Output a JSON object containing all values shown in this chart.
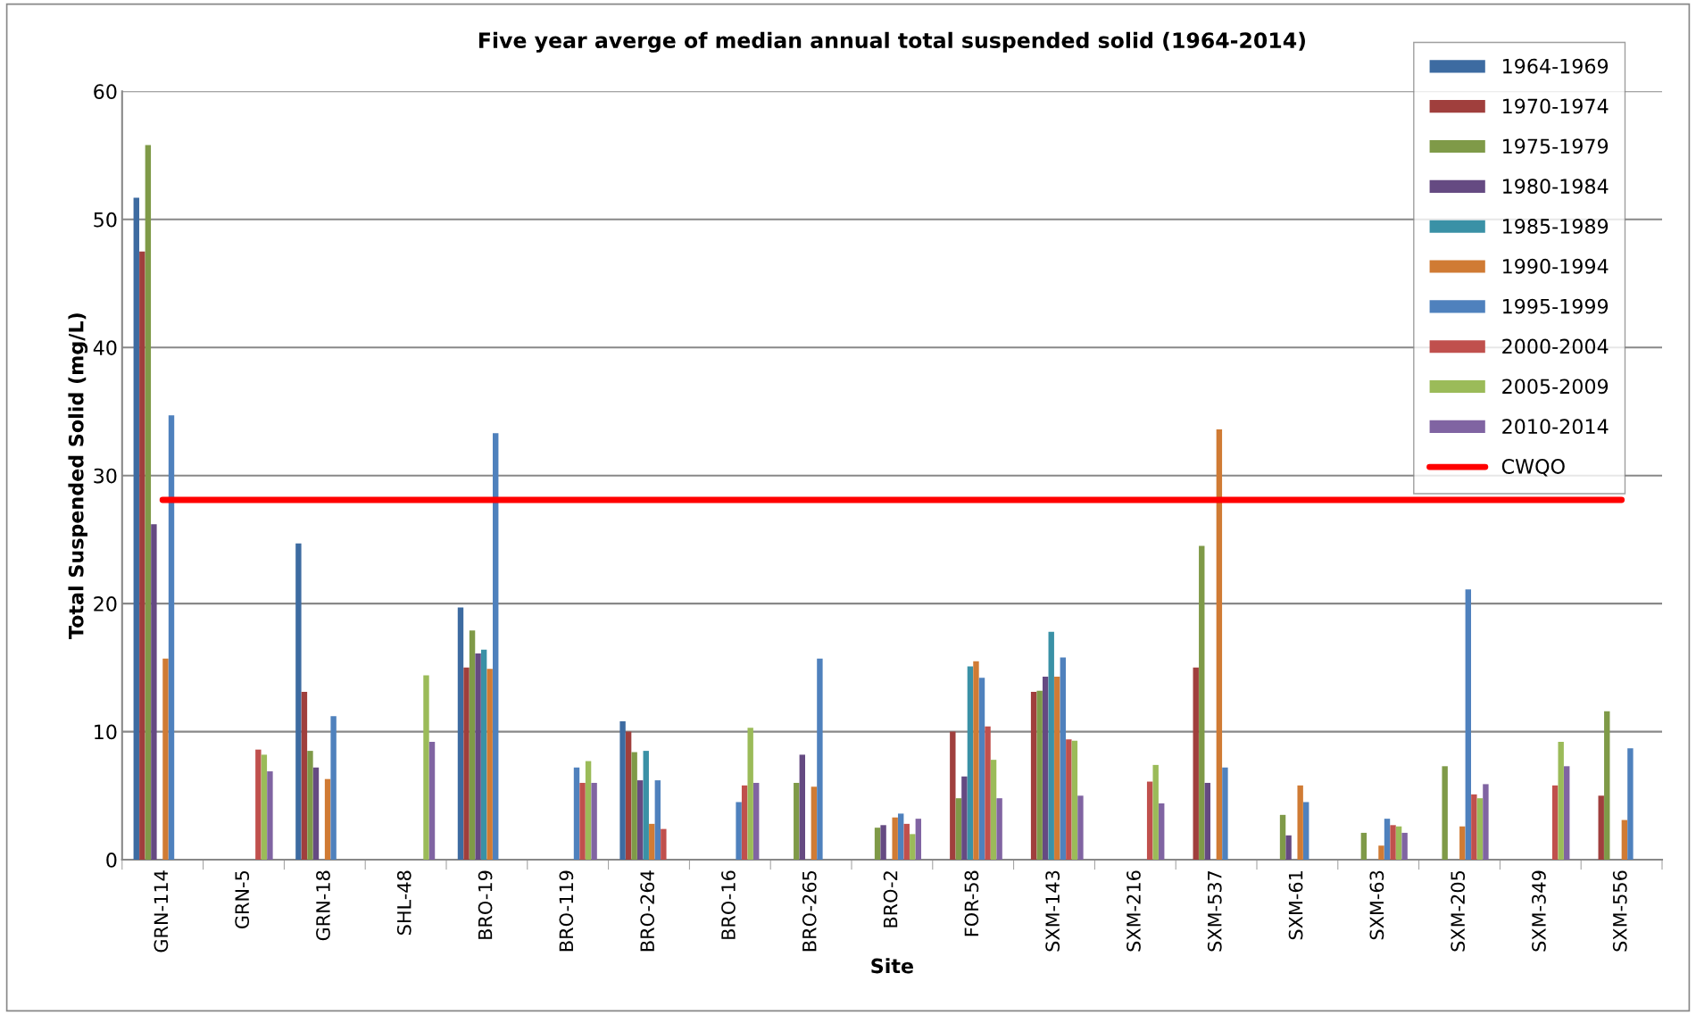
{
  "chart_data": {
    "type": "bar",
    "title": "Five year averge of median annual total suspended solid (1964-2014)",
    "xlabel": "Site",
    "ylabel": "Total Suspended Solid (mg/L)",
    "categories": [
      "GRN-114",
      "GRN-5",
      "GRN-18",
      "SHL-48",
      "BRO-19",
      "BRO-119",
      "BRO-264",
      "BRO-16",
      "BRO-265",
      "BRO-2",
      "FOR-58",
      "SXM-143",
      "SXM-216",
      "SXM-537",
      "SXM-61",
      "SXM-63",
      "SXM-205",
      "SXM-349",
      "SXM-556"
    ],
    "series": [
      {
        "name": "1964-1969",
        "color": "#3d6ba1",
        "values": [
          51.7,
          null,
          24.7,
          null,
          19.7,
          null,
          10.8,
          null,
          null,
          null,
          null,
          null,
          null,
          null,
          null,
          null,
          null,
          null,
          null
        ]
      },
      {
        "name": "1970-1974",
        "color": "#a03f3d",
        "values": [
          47.5,
          null,
          13.1,
          null,
          15.0,
          null,
          10.0,
          null,
          null,
          null,
          10.0,
          13.1,
          null,
          15.0,
          null,
          null,
          null,
          null,
          5.0
        ]
      },
      {
        "name": "1975-1979",
        "color": "#7f9a48",
        "values": [
          55.8,
          null,
          8.5,
          null,
          17.9,
          null,
          8.4,
          null,
          6.0,
          2.5,
          4.8,
          13.2,
          null,
          24.5,
          3.5,
          2.1,
          7.3,
          null,
          11.6
        ]
      },
      {
        "name": "1980-1984",
        "color": "#654a82",
        "values": [
          26.2,
          null,
          7.2,
          null,
          16.1,
          null,
          6.2,
          null,
          8.2,
          2.7,
          6.5,
          14.3,
          null,
          6.0,
          1.9,
          null,
          null,
          null,
          null
        ]
      },
      {
        "name": "1985-1989",
        "color": "#3a91a6",
        "values": [
          null,
          null,
          null,
          null,
          16.4,
          null,
          8.5,
          null,
          null,
          null,
          15.1,
          17.8,
          null,
          null,
          null,
          null,
          null,
          null,
          null
        ]
      },
      {
        "name": "1990-1994",
        "color": "#d07b34",
        "values": [
          15.7,
          null,
          6.3,
          null,
          14.9,
          null,
          2.8,
          null,
          5.7,
          3.3,
          15.5,
          14.3,
          null,
          33.6,
          5.8,
          1.1,
          2.6,
          null,
          3.1
        ]
      },
      {
        "name": "1995-1999",
        "color": "#4f81bd",
        "values": [
          34.7,
          null,
          11.2,
          null,
          33.3,
          7.2,
          6.2,
          4.5,
          15.7,
          3.6,
          14.2,
          15.8,
          null,
          7.2,
          4.5,
          3.2,
          21.1,
          null,
          8.7
        ]
      },
      {
        "name": "2000-2004",
        "color": "#c0504d",
        "values": [
          null,
          8.6,
          null,
          null,
          null,
          6.0,
          2.4,
          5.8,
          null,
          2.8,
          10.4,
          9.4,
          6.1,
          null,
          null,
          2.7,
          5.1,
          5.8,
          null
        ]
      },
      {
        "name": "2005-2009",
        "color": "#9bbb59",
        "values": [
          null,
          8.2,
          null,
          14.4,
          null,
          7.7,
          null,
          10.3,
          null,
          2.0,
          7.8,
          9.3,
          7.4,
          null,
          null,
          2.6,
          4.8,
          9.2,
          null
        ]
      },
      {
        "name": "2010-2014",
        "color": "#8064a2",
        "values": [
          null,
          6.9,
          null,
          9.2,
          null,
          6.0,
          null,
          6.0,
          null,
          3.2,
          4.8,
          5.0,
          4.4,
          null,
          null,
          2.1,
          5.9,
          7.3,
          null
        ]
      },
      {
        "name": "CWQO",
        "type": "line",
        "color": "#ff0000",
        "values": [
          28.1,
          28.1,
          28.1,
          28.1,
          28.1,
          28.1,
          28.1,
          28.1,
          28.1,
          28.1,
          28.1,
          28.1,
          28.1,
          28.1,
          28.1,
          28.1,
          28.1,
          28.1,
          28.1
        ]
      }
    ],
    "ylim": [
      0,
      60
    ],
    "yticks": [
      0,
      10,
      20,
      30,
      40,
      50,
      60
    ],
    "grid": "y",
    "legend": "top right"
  }
}
